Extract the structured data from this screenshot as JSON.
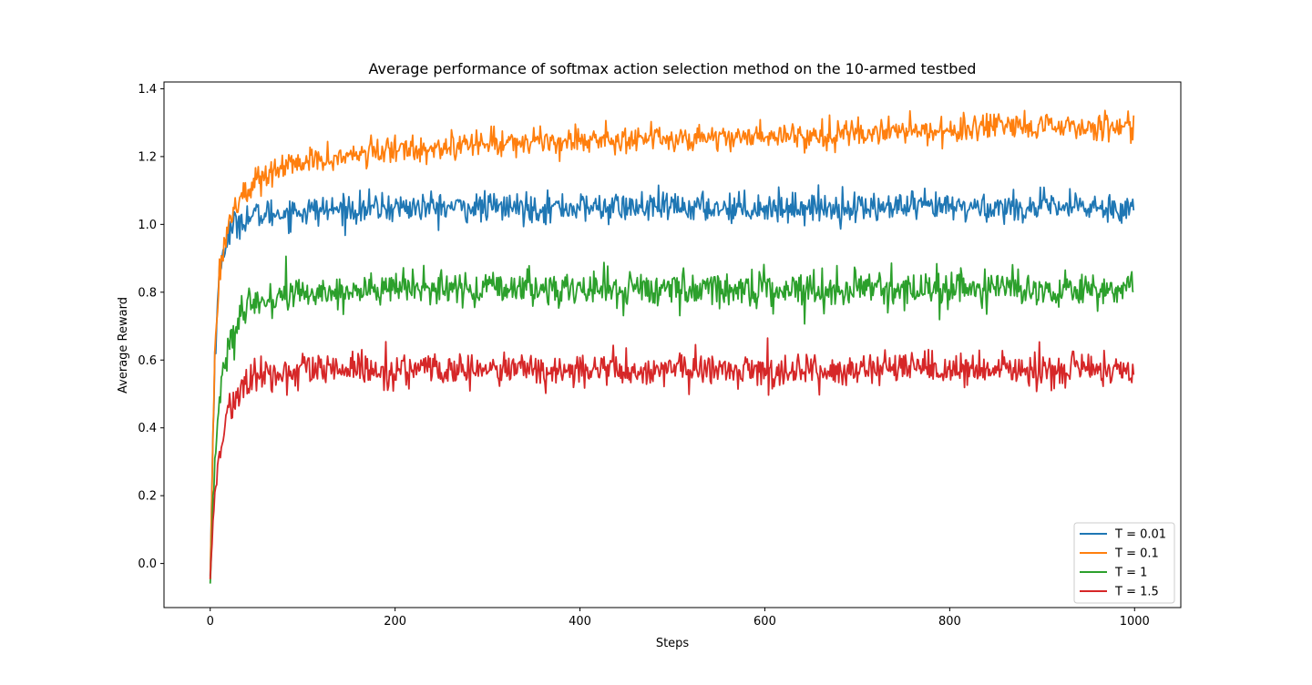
{
  "chart_data": {
    "type": "line",
    "title": "Average performance of softmax action selection method on the 10-armed testbed",
    "xlabel": "Steps",
    "ylabel": "Average Reward",
    "xlim": [
      -50,
      1050
    ],
    "ylim": [
      -0.13,
      1.42
    ],
    "xticks": [
      0,
      200,
      400,
      600,
      800,
      1000
    ],
    "yticks": [
      0.0,
      0.2,
      0.4,
      0.6,
      0.8,
      1.0,
      1.2,
      1.4
    ],
    "ytick_labels": [
      "0.0",
      "0.2",
      "0.4",
      "0.6",
      "0.8",
      "1.0",
      "1.2",
      "1.4"
    ],
    "grid": false,
    "legend_position": "bottom-right",
    "n_steps": 1000,
    "series": [
      {
        "name": "T = 0.01",
        "color": "#1f77b4",
        "x": [
          0,
          2,
          5,
          10,
          15,
          20,
          30,
          40,
          60,
          100,
          200,
          400,
          600,
          800,
          1000
        ],
        "y": [
          -0.04,
          0.25,
          0.62,
          0.85,
          0.93,
          0.97,
          1.01,
          1.02,
          1.03,
          1.04,
          1.05,
          1.05,
          1.05,
          1.05,
          1.05
        ],
        "noise": 0.022
      },
      {
        "name": "T = 0.1",
        "color": "#ff7f0e",
        "x": [
          0,
          2,
          5,
          10,
          15,
          20,
          30,
          50,
          80,
          120,
          200,
          300,
          400,
          600,
          800,
          1000
        ],
        "y": [
          -0.04,
          0.25,
          0.62,
          0.86,
          0.95,
          1.0,
          1.07,
          1.13,
          1.17,
          1.19,
          1.22,
          1.24,
          1.25,
          1.26,
          1.28,
          1.29
        ],
        "noise": 0.02
      },
      {
        "name": "T = 1",
        "color": "#2ca02c",
        "x": [
          0,
          2,
          5,
          10,
          15,
          20,
          30,
          50,
          80,
          120,
          200,
          400,
          600,
          800,
          1000
        ],
        "y": [
          -0.06,
          0.12,
          0.3,
          0.48,
          0.58,
          0.64,
          0.71,
          0.77,
          0.79,
          0.8,
          0.81,
          0.81,
          0.81,
          0.81,
          0.81
        ],
        "noise": 0.026
      },
      {
        "name": "T = 1.5",
        "color": "#d62728",
        "x": [
          0,
          2,
          5,
          10,
          15,
          20,
          30,
          50,
          80,
          120,
          200,
          400,
          600,
          800,
          1000
        ],
        "y": [
          -0.05,
          0.08,
          0.2,
          0.32,
          0.4,
          0.45,
          0.5,
          0.55,
          0.56,
          0.57,
          0.57,
          0.57,
          0.57,
          0.57,
          0.57
        ],
        "noise": 0.025
      }
    ]
  }
}
